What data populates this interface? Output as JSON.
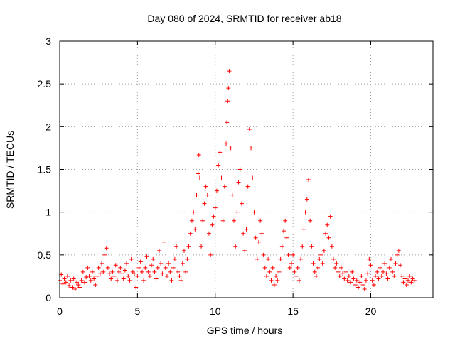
{
  "chart_data": {
    "type": "scatter",
    "title": "Day 080 of 2024, SRMTID for receiver ab18",
    "xlabel": "GPS time / hours",
    "ylabel": "SRMTID / TECUs",
    "xlim": [
      0,
      24
    ],
    "ylim": [
      0,
      3
    ],
    "xticks": [
      0,
      5,
      10,
      15,
      20
    ],
    "yticks": [
      0,
      0.5,
      1,
      1.5,
      2,
      2.5,
      3
    ],
    "xtick_labels": [
      "0",
      "5",
      "10",
      "15",
      "20"
    ],
    "ytick_labels": [
      "0",
      "0.5",
      "1",
      "1.5",
      "2",
      "2.5",
      "3"
    ],
    "grid": true,
    "marker": "+",
    "series": [
      {
        "name": "SRMTID",
        "color": "#ff0000",
        "points": [
          [
            0.0,
            0.2
          ],
          [
            0.1,
            0.27
          ],
          [
            0.2,
            0.16
          ],
          [
            0.3,
            0.22
          ],
          [
            0.4,
            0.18
          ],
          [
            0.5,
            0.25
          ],
          [
            0.6,
            0.14
          ],
          [
            0.7,
            0.2
          ],
          [
            0.8,
            0.12
          ],
          [
            0.9,
            0.22
          ],
          [
            1.0,
            0.1
          ],
          [
            1.1,
            0.18
          ],
          [
            1.2,
            0.15
          ],
          [
            1.3,
            0.12
          ],
          [
            1.4,
            0.2
          ],
          [
            1.5,
            0.3
          ],
          [
            1.6,
            0.18
          ],
          [
            1.7,
            0.24
          ],
          [
            1.8,
            0.35
          ],
          [
            1.9,
            0.25
          ],
          [
            2.0,
            0.2
          ],
          [
            2.1,
            0.3
          ],
          [
            2.2,
            0.22
          ],
          [
            2.3,
            0.15
          ],
          [
            2.4,
            0.25
          ],
          [
            2.5,
            0.35
          ],
          [
            2.6,
            0.28
          ],
          [
            2.7,
            0.4
          ],
          [
            2.8,
            0.3
          ],
          [
            2.9,
            0.5
          ],
          [
            3.0,
            0.58
          ],
          [
            3.1,
            0.35
          ],
          [
            3.2,
            0.28
          ],
          [
            3.3,
            0.22
          ],
          [
            3.4,
            0.3
          ],
          [
            3.5,
            0.25
          ],
          [
            3.6,
            0.38
          ],
          [
            3.7,
            0.2
          ],
          [
            3.8,
            0.3
          ],
          [
            3.9,
            0.35
          ],
          [
            4.0,
            0.28
          ],
          [
            4.1,
            0.22
          ],
          [
            4.2,
            0.32
          ],
          [
            4.3,
            0.4
          ],
          [
            4.4,
            0.25
          ],
          [
            4.5,
            0.2
          ],
          [
            4.6,
            0.45
          ],
          [
            4.7,
            0.3
          ],
          [
            4.8,
            0.28
          ],
          [
            4.9,
            0.12
          ],
          [
            5.0,
            0.25
          ],
          [
            5.1,
            0.35
          ],
          [
            5.2,
            0.42
          ],
          [
            5.3,
            0.3
          ],
          [
            5.4,
            0.2
          ],
          [
            5.5,
            0.35
          ],
          [
            5.6,
            0.48
          ],
          [
            5.7,
            0.3
          ],
          [
            5.8,
            0.25
          ],
          [
            5.9,
            0.38
          ],
          [
            6.0,
            0.45
          ],
          [
            6.1,
            0.3
          ],
          [
            6.2,
            0.22
          ],
          [
            6.3,
            0.35
          ],
          [
            6.4,
            0.55
          ],
          [
            6.5,
            0.4
          ],
          [
            6.6,
            0.28
          ],
          [
            6.7,
            0.65
          ],
          [
            6.8,
            0.35
          ],
          [
            6.9,
            0.25
          ],
          [
            7.0,
            0.4
          ],
          [
            7.1,
            0.3
          ],
          [
            7.2,
            0.2
          ],
          [
            7.3,
            0.35
          ],
          [
            7.4,
            0.45
          ],
          [
            7.5,
            0.6
          ],
          [
            7.6,
            0.3
          ],
          [
            7.7,
            0.25
          ],
          [
            7.8,
            0.2
          ],
          [
            7.9,
            0.4
          ],
          [
            8.0,
            0.55
          ],
          [
            8.1,
            0.3
          ],
          [
            8.2,
            0.45
          ],
          [
            8.3,
            0.6
          ],
          [
            8.4,
            0.75
          ],
          [
            8.5,
            0.9
          ],
          [
            8.6,
            1.0
          ],
          [
            8.7,
            0.8
          ],
          [
            8.8,
            1.2
          ],
          [
            8.9,
            1.45
          ],
          [
            8.95,
            1.67
          ],
          [
            9.0,
            1.4
          ],
          [
            9.1,
            0.6
          ],
          [
            9.2,
            0.9
          ],
          [
            9.3,
            1.1
          ],
          [
            9.4,
            1.3
          ],
          [
            9.5,
            1.2
          ],
          [
            9.6,
            0.75
          ],
          [
            9.7,
            0.5
          ],
          [
            9.8,
            0.85
          ],
          [
            9.9,
            0.95
          ],
          [
            10.0,
            1.05
          ],
          [
            10.1,
            1.25
          ],
          [
            10.2,
            1.55
          ],
          [
            10.3,
            1.7
          ],
          [
            10.4,
            1.4
          ],
          [
            10.5,
            0.9
          ],
          [
            10.6,
            1.3
          ],
          [
            10.7,
            1.8
          ],
          [
            10.75,
            2.05
          ],
          [
            10.8,
            2.3
          ],
          [
            10.85,
            2.45
          ],
          [
            10.9,
            2.65
          ],
          [
            11.0,
            1.75
          ],
          [
            11.1,
            1.2
          ],
          [
            11.2,
            0.9
          ],
          [
            11.3,
            0.6
          ],
          [
            11.4,
            1.0
          ],
          [
            11.5,
            1.35
          ],
          [
            11.6,
            1.5
          ],
          [
            11.7,
            1.1
          ],
          [
            11.8,
            0.75
          ],
          [
            11.9,
            0.55
          ],
          [
            12.0,
            0.8
          ],
          [
            12.1,
            1.3
          ],
          [
            12.2,
            1.97
          ],
          [
            12.3,
            1.75
          ],
          [
            12.4,
            1.4
          ],
          [
            12.5,
            1.0
          ],
          [
            12.6,
            0.7
          ],
          [
            12.7,
            0.45
          ],
          [
            12.8,
            0.65
          ],
          [
            12.9,
            0.9
          ],
          [
            13.0,
            0.75
          ],
          [
            13.1,
            0.5
          ],
          [
            13.2,
            0.35
          ],
          [
            13.3,
            0.25
          ],
          [
            13.4,
            0.45
          ],
          [
            13.5,
            0.3
          ],
          [
            13.6,
            0.2
          ],
          [
            13.7,
            0.35
          ],
          [
            13.8,
            0.15
          ],
          [
            13.9,
            0.25
          ],
          [
            14.0,
            0.2
          ],
          [
            14.1,
            0.3
          ],
          [
            14.2,
            0.45
          ],
          [
            14.3,
            0.6
          ],
          [
            14.4,
            0.78
          ],
          [
            14.5,
            0.9
          ],
          [
            14.6,
            0.7
          ],
          [
            14.7,
            0.5
          ],
          [
            14.8,
            0.35
          ],
          [
            14.9,
            0.4
          ],
          [
            15.0,
            0.5
          ],
          [
            15.1,
            0.3
          ],
          [
            15.2,
            0.25
          ],
          [
            15.3,
            0.35
          ],
          [
            15.4,
            0.2
          ],
          [
            15.5,
            0.45
          ],
          [
            15.6,
            0.6
          ],
          [
            15.7,
            0.8
          ],
          [
            15.8,
            1.0
          ],
          [
            15.9,
            1.15
          ],
          [
            16.0,
            1.38
          ],
          [
            16.1,
            0.9
          ],
          [
            16.2,
            0.6
          ],
          [
            16.3,
            0.4
          ],
          [
            16.4,
            0.3
          ],
          [
            16.5,
            0.25
          ],
          [
            16.6,
            0.35
          ],
          [
            16.7,
            0.45
          ],
          [
            16.8,
            0.5
          ],
          [
            16.9,
            0.4
          ],
          [
            17.0,
            0.55
          ],
          [
            17.1,
            0.75
          ],
          [
            17.2,
            0.85
          ],
          [
            17.3,
            0.7
          ],
          [
            17.4,
            0.95
          ],
          [
            17.5,
            0.6
          ],
          [
            17.6,
            0.45
          ],
          [
            17.7,
            0.35
          ],
          [
            17.8,
            0.4
          ],
          [
            17.9,
            0.3
          ],
          [
            18.0,
            0.25
          ],
          [
            18.1,
            0.35
          ],
          [
            18.2,
            0.28
          ],
          [
            18.3,
            0.22
          ],
          [
            18.4,
            0.3
          ],
          [
            18.5,
            0.2
          ],
          [
            18.6,
            0.25
          ],
          [
            18.7,
            0.18
          ],
          [
            18.8,
            0.3
          ],
          [
            18.9,
            0.22
          ],
          [
            19.0,
            0.15
          ],
          [
            19.1,
            0.2
          ],
          [
            19.2,
            0.12
          ],
          [
            19.3,
            0.18
          ],
          [
            19.4,
            0.25
          ],
          [
            19.5,
            0.15
          ],
          [
            19.6,
            0.1
          ],
          [
            19.7,
            0.2
          ],
          [
            19.8,
            0.28
          ],
          [
            19.9,
            0.45
          ],
          [
            20.0,
            0.38
          ],
          [
            20.1,
            0.2
          ],
          [
            20.2,
            0.15
          ],
          [
            20.3,
            0.25
          ],
          [
            20.4,
            0.3
          ],
          [
            20.5,
            0.22
          ],
          [
            20.6,
            0.35
          ],
          [
            20.7,
            0.25
          ],
          [
            20.8,
            0.3
          ],
          [
            20.9,
            0.4
          ],
          [
            21.0,
            0.28
          ],
          [
            21.1,
            0.22
          ],
          [
            21.2,
            0.35
          ],
          [
            21.3,
            0.45
          ],
          [
            21.4,
            0.3
          ],
          [
            21.5,
            0.25
          ],
          [
            21.6,
            0.4
          ],
          [
            21.7,
            0.5
          ],
          [
            21.8,
            0.55
          ],
          [
            21.9,
            0.38
          ],
          [
            22.0,
            0.25
          ],
          [
            22.1,
            0.18
          ],
          [
            22.2,
            0.22
          ],
          [
            22.3,
            0.15
          ],
          [
            22.4,
            0.2
          ],
          [
            22.5,
            0.25
          ],
          [
            22.6,
            0.18
          ],
          [
            22.7,
            0.22
          ],
          [
            22.8,
            0.2
          ]
        ]
      }
    ]
  }
}
